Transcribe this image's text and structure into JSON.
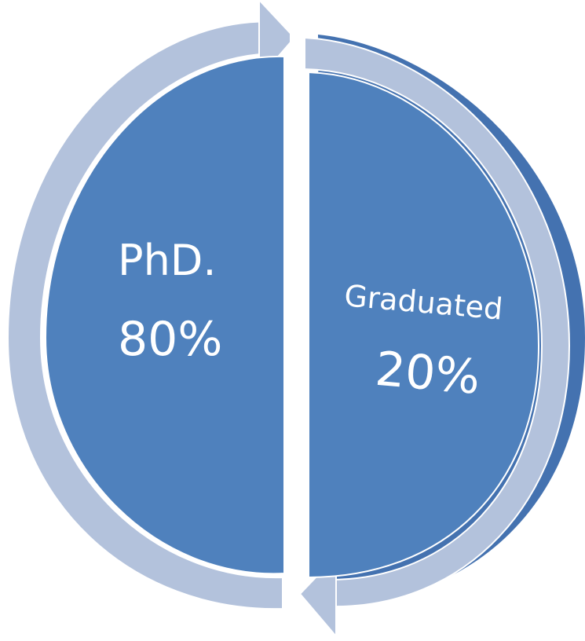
{
  "diagram": {
    "type": "split-cycle",
    "colors": {
      "segment_fill": "#4f81bd",
      "segment_shadow": "#4472b0",
      "arrow_fill": "#b3c2dc",
      "arrow_edge": "#ffffff",
      "text": "#ffffff"
    },
    "segments": [
      {
        "label": "PhD.",
        "value": "80%",
        "value_number": 80
      },
      {
        "label": "Graduated",
        "value": "20%",
        "value_number": 20
      }
    ]
  }
}
